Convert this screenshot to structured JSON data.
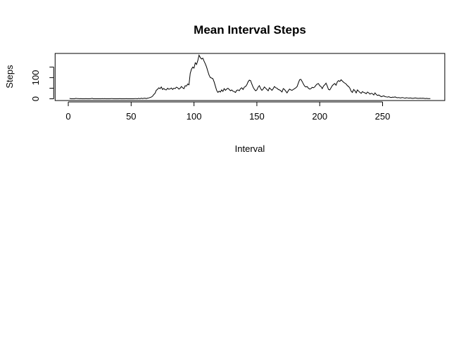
{
  "chart_data": {
    "type": "line",
    "title": "Mean Interval Steps",
    "xlabel": "Interval",
    "ylabel": "Steps",
    "x": [
      1,
      2,
      3,
      4,
      5,
      6,
      7,
      8,
      9,
      10,
      11,
      12,
      13,
      14,
      15,
      16,
      17,
      18,
      19,
      20,
      21,
      22,
      23,
      24,
      25,
      26,
      27,
      28,
      29,
      30,
      31,
      32,
      33,
      34,
      35,
      36,
      37,
      38,
      39,
      40,
      41,
      42,
      43,
      44,
      45,
      46,
      47,
      48,
      49,
      50,
      51,
      52,
      53,
      54,
      55,
      56,
      57,
      58,
      59,
      60,
      61,
      62,
      63,
      64,
      65,
      66,
      67,
      68,
      69,
      70,
      71,
      72,
      73,
      74,
      75,
      76,
      77,
      78,
      79,
      80,
      81,
      82,
      83,
      84,
      85,
      86,
      87,
      88,
      89,
      90,
      91,
      92,
      93,
      94,
      95,
      96,
      97,
      98,
      99,
      100,
      101,
      102,
      103,
      104,
      105,
      106,
      107,
      108,
      109,
      110,
      111,
      112,
      113,
      114,
      115,
      116,
      117,
      118,
      119,
      120,
      121,
      122,
      123,
      124,
      125,
      126,
      127,
      128,
      129,
      130,
      131,
      132,
      133,
      134,
      135,
      136,
      137,
      138,
      139,
      140,
      141,
      142,
      143,
      144,
      145,
      146,
      147,
      148,
      149,
      150,
      151,
      152,
      153,
      154,
      155,
      156,
      157,
      158,
      159,
      160,
      161,
      162,
      163,
      164,
      165,
      166,
      167,
      168,
      169,
      170,
      171,
      172,
      173,
      174,
      175,
      176,
      177,
      178,
      179,
      180,
      181,
      182,
      183,
      184,
      185,
      186,
      187,
      188,
      189,
      190,
      191,
      192,
      193,
      194,
      195,
      196,
      197,
      198,
      199,
      200,
      201,
      202,
      203,
      204,
      205,
      206,
      207,
      208,
      209,
      210,
      211,
      212,
      213,
      214,
      215,
      216,
      217,
      218,
      219,
      220,
      221,
      222,
      223,
      224,
      225,
      226,
      227,
      228,
      229,
      230,
      231,
      232,
      233,
      234,
      235,
      236,
      237,
      238,
      239,
      240,
      241,
      242,
      243,
      244,
      245,
      246,
      247,
      248,
      249,
      250,
      251,
      252,
      253,
      254,
      255,
      256,
      257,
      258,
      259,
      260,
      261,
      262,
      263,
      264,
      265,
      266,
      267,
      268,
      269,
      270,
      271,
      272,
      273,
      274,
      275,
      276,
      277,
      278,
      279,
      280,
      281,
      282,
      283,
      284,
      285,
      286,
      287,
      288
    ],
    "series": [
      {
        "color": "#000000",
        "values": [
          2,
          0,
          0,
          0,
          0,
          2,
          1,
          1,
          0,
          1,
          0,
          0,
          0,
          1,
          0,
          0,
          0,
          1,
          2,
          0,
          0,
          0,
          0,
          0,
          0,
          0,
          1,
          0,
          1,
          0,
          0,
          0,
          0,
          1,
          1,
          0,
          0,
          0,
          0,
          0,
          1,
          0,
          0,
          0,
          0,
          1,
          0,
          0,
          0,
          0,
          0,
          0,
          1,
          1,
          0,
          2,
          0,
          3,
          1,
          2,
          3,
          1,
          3,
          4,
          6,
          8,
          12,
          20,
          26,
          40,
          45,
          52,
          48,
          56,
          44,
          49,
          43,
          42,
          50,
          45,
          47,
          51,
          44,
          50,
          48,
          55,
          52,
          46,
          50,
          58,
          52,
          48,
          62,
          60,
          70,
          66,
          120,
          140,
          150,
          145,
          170,
          162,
          180,
          206,
          195,
          188,
          192,
          178,
          165,
          150,
          130,
          112,
          100,
          98,
          95,
          80,
          60,
          40,
          30,
          36,
          32,
          42,
          35,
          48,
          40,
          46,
          50,
          44,
          38,
          42,
          36,
          34,
          30,
          40,
          42,
          38,
          48,
          52,
          44,
          55,
          58,
          66,
          80,
          88,
          86,
          70,
          55,
          45,
          38,
          42,
          55,
          62,
          48,
          40,
          46,
          56,
          50,
          44,
          38,
          52,
          46,
          40,
          48,
          58,
          52,
          50,
          44,
          42,
          38,
          32,
          48,
          44,
          36,
          28,
          38,
          46,
          42,
          40,
          44,
          48,
          52,
          58,
          74,
          90,
          92,
          82,
          70,
          60,
          56,
          58,
          50,
          46,
          48,
          54,
          52,
          56,
          64,
          70,
          72,
          62,
          58,
          48,
          60,
          66,
          74,
          60,
          44,
          42,
          52,
          62,
          68,
          72,
          64,
          80,
          86,
          82,
          90,
          84,
          78,
          74,
          70,
          62,
          58,
          50,
          36,
          30,
          44,
          38,
          28,
          42,
          36,
          30,
          26,
          34,
          30,
          28,
          24,
          32,
          28,
          22,
          26,
          24,
          18,
          28,
          20,
          16,
          18,
          14,
          10,
          12,
          14,
          10,
          9,
          8,
          10,
          7,
          6,
          8,
          7,
          9,
          6,
          5,
          6,
          4,
          5,
          6,
          4,
          3,
          5,
          4,
          3,
          4,
          3,
          2,
          3,
          4,
          3,
          2,
          2,
          3,
          2,
          3,
          2,
          1,
          2,
          1,
          1,
          1
        ]
      }
    ],
    "xlim": [
      -10.48,
      299.48
    ],
    "xticks": [
      0,
      50,
      100,
      150,
      200,
      250
    ],
    "ylim": [
      -8.24,
      214.24
    ],
    "yticks": [
      0,
      100
    ],
    "yminor_ticks": [
      50,
      150
    ]
  }
}
